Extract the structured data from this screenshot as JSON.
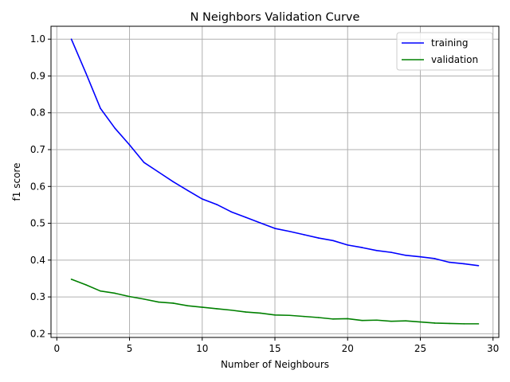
{
  "chart_data": {
    "type": "line",
    "title": "N Neighbors Validation Curve",
    "xlabel": "Number of Neighbours",
    "ylabel": "f1 score",
    "xlim": [
      -0.4,
      30.4
    ],
    "ylim": [
      0.19,
      1.035
    ],
    "xticks": [
      0,
      5,
      10,
      15,
      20,
      25,
      30
    ],
    "xtick_labels": [
      "0",
      "5",
      "10",
      "15",
      "20",
      "25",
      "30"
    ],
    "yticks": [
      0.2,
      0.3,
      0.4,
      0.5,
      0.6,
      0.7,
      0.8,
      0.9,
      1.0
    ],
    "ytick_labels": [
      "0.2",
      "0.3",
      "0.4",
      "0.5",
      "0.6",
      "0.7",
      "0.8",
      "0.9",
      "1.0"
    ],
    "grid": true,
    "legend_position": "top-right",
    "x": [
      1,
      2,
      3,
      4,
      5,
      6,
      7,
      8,
      9,
      10,
      11,
      12,
      13,
      14,
      15,
      16,
      17,
      18,
      19,
      20,
      21,
      22,
      23,
      24,
      25,
      26,
      27,
      28,
      29
    ],
    "series": [
      {
        "name": "training",
        "color": "#0000ff",
        "values": [
          1.0,
          0.908,
          0.812,
          0.758,
          0.713,
          0.665,
          0.639,
          0.613,
          0.589,
          0.566,
          0.551,
          0.531,
          0.516,
          0.501,
          0.486,
          0.478,
          0.469,
          0.46,
          0.453,
          0.441,
          0.434,
          0.426,
          0.421,
          0.413,
          0.409,
          0.404,
          0.394,
          0.39,
          0.385
        ]
      },
      {
        "name": "validation",
        "color": "#008000",
        "values": [
          0.348,
          0.333,
          0.316,
          0.31,
          0.301,
          0.294,
          0.286,
          0.283,
          0.276,
          0.272,
          0.268,
          0.264,
          0.259,
          0.256,
          0.251,
          0.25,
          0.247,
          0.244,
          0.24,
          0.241,
          0.236,
          0.237,
          0.234,
          0.235,
          0.232,
          0.229,
          0.228,
          0.227,
          0.227
        ]
      }
    ]
  }
}
